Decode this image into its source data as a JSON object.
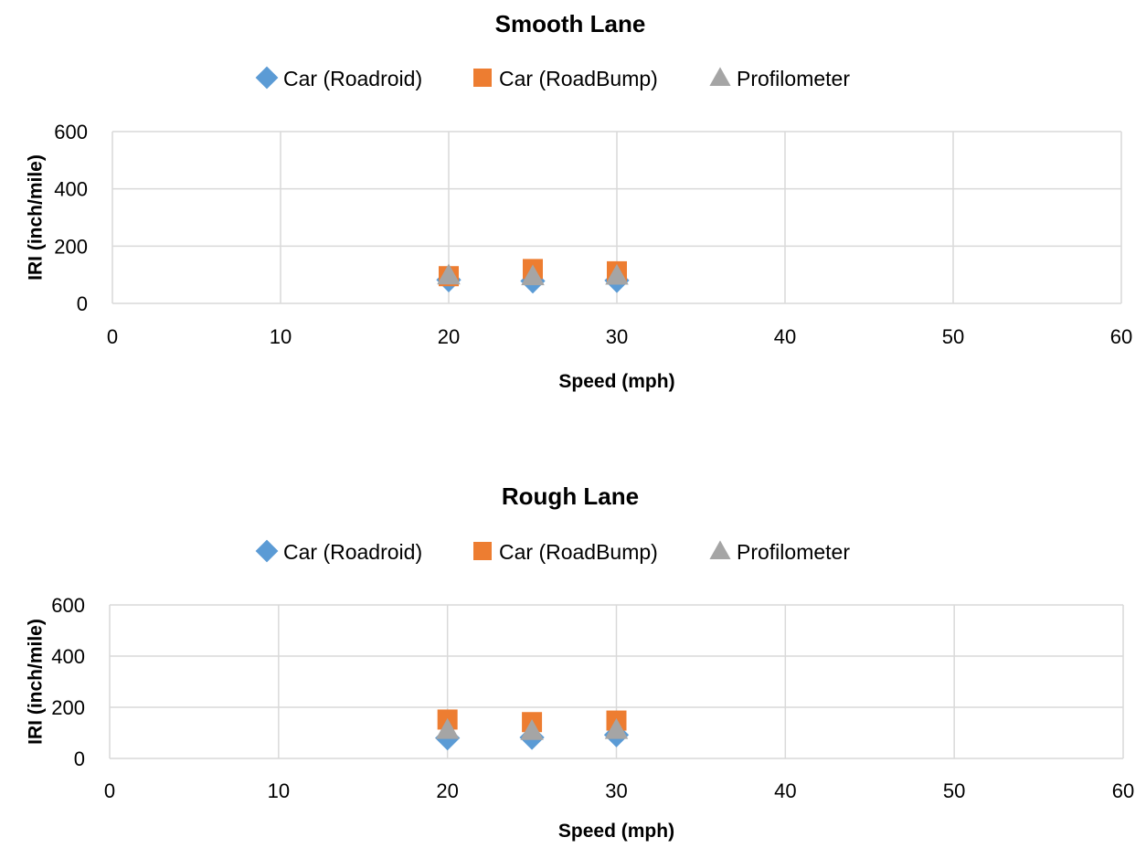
{
  "chart_data": [
    {
      "type": "scatter",
      "title": "Smooth Lane",
      "xlabel": "Speed (mph)",
      "ylabel": "IRI (inch/mile)",
      "xlim": [
        0,
        60
      ],
      "ylim": [
        0,
        600
      ],
      "x_ticks": [
        0,
        10,
        20,
        30,
        40,
        50,
        60
      ],
      "y_ticks": [
        0,
        200,
        400,
        600
      ],
      "grid": true,
      "legend_position": "top",
      "series": [
        {
          "name": "Car (Roadroid)",
          "color": "#5b9bd5",
          "marker": "diamond",
          "x": [
            20,
            25,
            30
          ],
          "y": [
            82,
            78,
            80
          ]
        },
        {
          "name": "Car (RoadBump)",
          "color": "#ed7d31",
          "marker": "square",
          "x": [
            20,
            25,
            30
          ],
          "y": [
            95,
            120,
            112
          ]
        },
        {
          "name": "Profilometer",
          "color": "#a5a5a5",
          "marker": "triangle",
          "x": [
            20,
            25,
            30
          ],
          "y": [
            98,
            95,
            97
          ]
        }
      ]
    },
    {
      "type": "scatter",
      "title": "Rough Lane",
      "xlabel": "Speed (mph)",
      "ylabel": "IRI (inch/mile)",
      "xlim": [
        0,
        60
      ],
      "ylim": [
        0,
        600
      ],
      "x_ticks": [
        0,
        10,
        20,
        30,
        40,
        50,
        60
      ],
      "y_ticks": [
        0,
        200,
        400,
        600
      ],
      "grid": true,
      "legend_position": "top",
      "series": [
        {
          "name": "Car (Roadroid)",
          "color": "#5b9bd5",
          "marker": "diamond",
          "x": [
            20,
            25,
            30
          ],
          "y": [
            80,
            82,
            92
          ]
        },
        {
          "name": "Car (RoadBump)",
          "color": "#ed7d31",
          "marker": "square",
          "x": [
            20,
            25,
            30
          ],
          "y": [
            152,
            142,
            148
          ]
        },
        {
          "name": "Profilometer",
          "color": "#a5a5a5",
          "marker": "triangle",
          "x": [
            20,
            25,
            30
          ],
          "y": [
            112,
            108,
            112
          ]
        }
      ]
    }
  ]
}
